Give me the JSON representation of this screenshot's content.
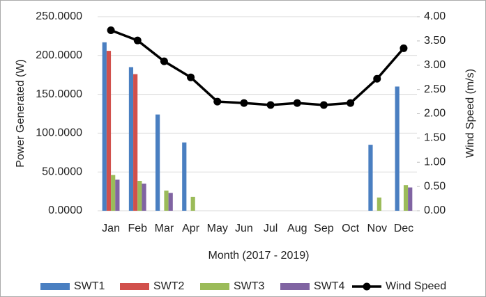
{
  "chart_data": {
    "type": "bar-line",
    "x_label": "Month (2017 - 2019)",
    "y_label": "Power Generated (W)",
    "y2_label": "Wind Speed (m/s)",
    "categories": [
      "Jan",
      "Feb",
      "Mar",
      "Apr",
      "May",
      "Jun",
      "Jul",
      "Aug",
      "Sep",
      "Oct",
      "Nov",
      "Dec"
    ],
    "series": [
      {
        "name": "SWT1",
        "type": "bar",
        "color": "#4a7fc1",
        "values": [
          217,
          185,
          124,
          88,
          0,
          0,
          0,
          0,
          0,
          0,
          85,
          160
        ]
      },
      {
        "name": "SWT2",
        "type": "bar",
        "color": "#d1504c",
        "values": [
          206,
          176,
          0,
          0,
          0,
          0,
          0,
          0,
          0,
          0,
          0,
          0
        ]
      },
      {
        "name": "SWT3",
        "type": "bar",
        "color": "#9bbb59",
        "values": [
          46,
          38.5,
          26,
          18,
          0,
          0,
          0,
          0,
          0,
          0,
          17,
          33
        ]
      },
      {
        "name": "SWT4",
        "type": "bar",
        "color": "#8064a2",
        "values": [
          40,
          35,
          23,
          0,
          0,
          0,
          0,
          0,
          0,
          0,
          0,
          30
        ]
      },
      {
        "name": "Wind Speed",
        "type": "line",
        "axis": "y2",
        "color": "#000000",
        "values": [
          3.72,
          3.51,
          3.08,
          2.75,
          2.25,
          2.22,
          2.18,
          2.22,
          2.18,
          2.22,
          2.72,
          3.35
        ]
      }
    ],
    "ylim": [
      0,
      250
    ],
    "yticks": [
      {
        "value": 0,
        "label": "0.0000"
      },
      {
        "value": 50,
        "label": "50.0000"
      },
      {
        "value": 100,
        "label": "100.0000"
      },
      {
        "value": 150,
        "label": "150.0000"
      },
      {
        "value": 200,
        "label": "200.0000"
      },
      {
        "value": 250,
        "label": "250.0000"
      }
    ],
    "y2lim": [
      0,
      4
    ],
    "y2ticks": [
      {
        "value": 0,
        "label": "0.00"
      },
      {
        "value": 0.5,
        "label": "0.50"
      },
      {
        "value": 1,
        "label": "1.00"
      },
      {
        "value": 1.5,
        "label": "1.50"
      },
      {
        "value": 2,
        "label": "2.00"
      },
      {
        "value": 2.5,
        "label": "2.50"
      },
      {
        "value": 3,
        "label": "3.00"
      },
      {
        "value": 3.5,
        "label": "3.50"
      },
      {
        "value": 4,
        "label": "4.00"
      }
    ],
    "grid": true,
    "legend": "bottom"
  }
}
